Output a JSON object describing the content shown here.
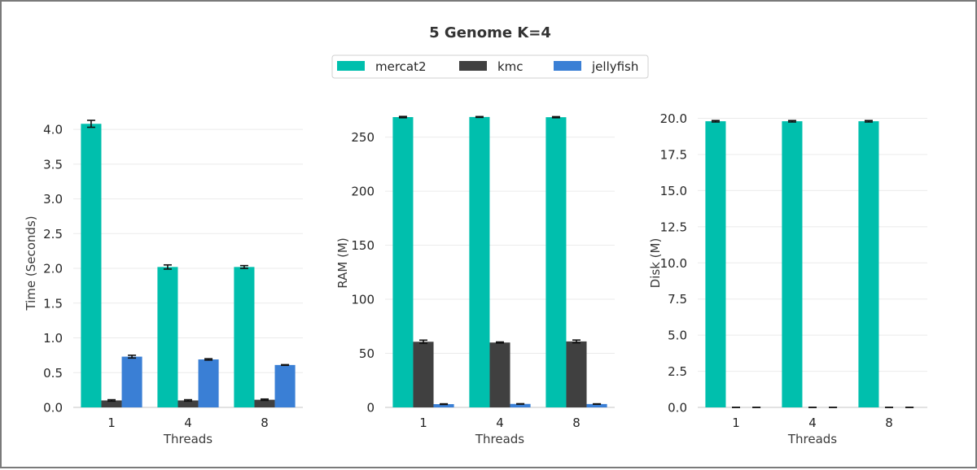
{
  "title": "5 Genome K=4",
  "legend": {
    "placement": "top-center",
    "entries": [
      {
        "name": "mercat2",
        "color": "#00bfad"
      },
      {
        "name": "kmc",
        "color": "#404040"
      },
      {
        "name": "jellyfish",
        "color": "#3a7fd5"
      }
    ]
  },
  "chart_data": [
    {
      "type": "bar",
      "xlabel": "Threads",
      "ylabel": "Time (Seconds)",
      "categories": [
        "1",
        "4",
        "8"
      ],
      "ylim": [
        0,
        4.2
      ],
      "yticks": [
        0.0,
        0.5,
        1.0,
        1.5,
        2.0,
        2.5,
        3.0,
        3.5,
        4.0
      ],
      "ytick_decimals": 1,
      "grid": true,
      "series": [
        {
          "name": "mercat2",
          "values": [
            4.08,
            2.02,
            2.02
          ],
          "errors": [
            0.05,
            0.03,
            0.02
          ]
        },
        {
          "name": "kmc",
          "values": [
            0.1,
            0.1,
            0.11
          ],
          "errors": [
            0.01,
            0.01,
            0.01
          ]
        },
        {
          "name": "jellyfish",
          "values": [
            0.73,
            0.69,
            0.61
          ],
          "errors": [
            0.02,
            0.01,
            0.005
          ]
        }
      ]
    },
    {
      "type": "bar",
      "xlabel": "Threads",
      "ylabel": "RAM (M)",
      "categories": [
        "1",
        "4",
        "8"
      ],
      "ylim": [
        0,
        270
      ],
      "yticks": [
        0,
        50,
        100,
        150,
        200,
        250
      ],
      "ytick_decimals": 0,
      "grid": true,
      "series": [
        {
          "name": "mercat2",
          "values": [
            268.5,
            268.6,
            268.4
          ],
          "errors": [
            0.6,
            0.4,
            0.5
          ]
        },
        {
          "name": "kmc",
          "values": [
            60.7,
            60.0,
            61.0
          ],
          "errors": [
            1.5,
            0.5,
            1.3
          ]
        },
        {
          "name": "jellyfish",
          "values": [
            3.0,
            3.2,
            3.1
          ],
          "errors": [
            0.3,
            0.2,
            0.2
          ]
        }
      ]
    },
    {
      "type": "bar",
      "xlabel": "Threads",
      "ylabel": "Disk (M)",
      "categories": [
        "1",
        "4",
        "8"
      ],
      "ylim": [
        0,
        20.2
      ],
      "yticks": [
        0.0,
        2.5,
        5.0,
        7.5,
        10.0,
        12.5,
        15.0,
        17.5,
        20.0
      ],
      "ytick_decimals": 1,
      "grid": true,
      "series": [
        {
          "name": "mercat2",
          "values": [
            19.8,
            19.8,
            19.8
          ],
          "errors": [
            0.05,
            0.05,
            0.05
          ]
        },
        {
          "name": "kmc",
          "values": [
            0.0,
            0.0,
            0.0
          ],
          "errors": [
            0,
            0,
            0
          ]
        },
        {
          "name": "jellyfish",
          "values": [
            0.0,
            0.0,
            0.0
          ],
          "errors": [
            0,
            0,
            0
          ]
        }
      ]
    }
  ]
}
